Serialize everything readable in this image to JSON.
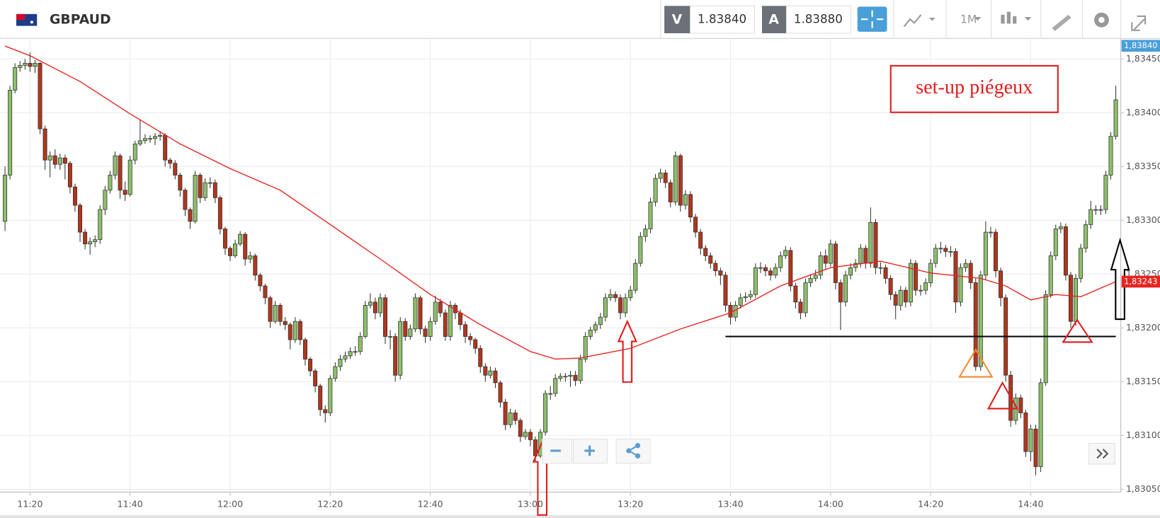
{
  "toolbar": {
    "symbol": "GBPAUD",
    "bid_tag": "V",
    "bid": "1.83840",
    "ask_tag": "A",
    "ask": "1.83880",
    "timeframe": "1M"
  },
  "chart_data": {
    "type": "candlestick",
    "x": [
      "11:15",
      "11:16",
      "11:17",
      "11:18",
      "11:19",
      "11:20",
      "11:21",
      "11:22",
      "11:23",
      "11:24",
      "11:25",
      "11:26",
      "11:27",
      "11:28",
      "11:29",
      "11:30",
      "11:31",
      "11:32",
      "11:33",
      "11:34",
      "11:35",
      "11:36",
      "11:37",
      "11:38",
      "11:39",
      "11:40",
      "11:41",
      "11:42",
      "11:43",
      "11:44",
      "11:45",
      "11:46",
      "11:47",
      "11:48",
      "11:49",
      "11:50",
      "11:51",
      "11:52",
      "11:53",
      "11:54",
      "11:55",
      "11:56",
      "11:57",
      "11:58",
      "11:59",
      "12:00",
      "12:01",
      "12:02",
      "12:03",
      "12:04",
      "12:05",
      "12:06",
      "12:07",
      "12:08",
      "12:09",
      "12:10",
      "12:11",
      "12:12",
      "12:13",
      "12:14",
      "12:15",
      "12:16",
      "12:17",
      "12:18",
      "12:19",
      "12:20",
      "12:21",
      "12:22",
      "12:23",
      "12:24",
      "12:25",
      "12:26",
      "12:27",
      "12:28",
      "12:29",
      "12:30",
      "12:31",
      "12:32",
      "12:33",
      "12:34",
      "12:35",
      "12:36",
      "12:37",
      "12:38",
      "12:39",
      "12:40",
      "12:41",
      "12:42",
      "12:43",
      "12:44",
      "12:45",
      "12:46",
      "12:47",
      "12:48",
      "12:49",
      "12:50",
      "12:51",
      "12:52",
      "12:53",
      "12:54",
      "12:55",
      "12:56",
      "12:57",
      "12:58",
      "12:59",
      "13:00",
      "13:01",
      "13:02",
      "13:03",
      "13:04",
      "13:05",
      "13:06",
      "13:07",
      "13:08",
      "13:09",
      "13:10",
      "13:11",
      "13:12",
      "13:13",
      "13:14",
      "13:15",
      "13:16",
      "13:17",
      "13:18",
      "13:19",
      "13:20",
      "13:21",
      "13:22",
      "13:23",
      "13:24",
      "13:25",
      "13:26",
      "13:27",
      "13:28",
      "13:29",
      "13:30",
      "13:31",
      "13:32",
      "13:33",
      "13:34",
      "13:35",
      "13:36",
      "13:37",
      "13:38",
      "13:39",
      "13:40",
      "13:41",
      "13:42",
      "13:43",
      "13:44",
      "13:45",
      "13:46",
      "13:47",
      "13:48",
      "13:49",
      "13:50",
      "13:51",
      "13:52",
      "13:53",
      "13:54",
      "13:55",
      "13:56",
      "13:57",
      "13:58",
      "13:59",
      "14:00",
      "14:01",
      "14:02",
      "14:03",
      "14:04",
      "14:05",
      "14:06",
      "14:07",
      "14:08",
      "14:09",
      "14:10",
      "14:11",
      "14:12",
      "14:13",
      "14:14",
      "14:15",
      "14:16",
      "14:17",
      "14:18",
      "14:19",
      "14:20",
      "14:21",
      "14:22",
      "14:23",
      "14:24",
      "14:25",
      "14:26",
      "14:27",
      "14:28",
      "14:29",
      "14:30",
      "14:31",
      "14:32",
      "14:33",
      "14:34",
      "14:35",
      "14:36",
      "14:37",
      "14:38",
      "14:39",
      "14:40",
      "14:41",
      "14:42",
      "14:43",
      "14:44",
      "14:45",
      "14:46",
      "14:47",
      "14:48",
      "14:49",
      "14:50",
      "14:51",
      "14:52",
      "14:53",
      "14:54",
      "14:55",
      "14:56",
      "14:57"
    ],
    "open": [
      1.83299,
      1.83342,
      1.83421,
      1.83442,
      1.83444,
      1.83446,
      1.83443,
      1.83446,
      1.83385,
      1.83356,
      1.8336,
      1.83352,
      1.83358,
      1.83353,
      1.83331,
      1.83314,
      1.83289,
      1.83278,
      1.8328,
      1.83282,
      1.8331,
      1.83328,
      1.83342,
      1.8336,
      1.83328,
      1.83324,
      1.83356,
      1.83371,
      1.83374,
      1.83376,
      1.83376,
      1.83378,
      1.83379,
      1.83356,
      1.83353,
      1.83342,
      1.83328,
      1.8331,
      1.83299,
      1.83342,
      1.83321,
      1.83335,
      1.83335,
      1.83321,
      1.83292,
      1.83274,
      1.83267,
      1.83278,
      1.83287,
      1.83264,
      1.83267,
      1.83249,
      1.83239,
      1.83228,
      1.83206,
      1.83221,
      1.83206,
      1.83203,
      1.83189,
      1.83206,
      1.83189,
      1.83171,
      1.8316,
      1.83146,
      1.83124,
      1.83121,
      1.83153,
      1.83164,
      1.83171,
      1.83174,
      1.83178,
      1.83178,
      1.83192,
      1.83221,
      1.83224,
      1.83214,
      1.83228,
      1.83192,
      1.83192,
      1.83156,
      1.83206,
      1.83192,
      1.83199,
      1.83228,
      1.83199,
      1.83192,
      1.83206,
      1.83224,
      1.83214,
      1.83192,
      1.83221,
      1.83214,
      1.83203,
      1.83192,
      1.83189,
      1.83181,
      1.83164,
      1.83156,
      1.8316,
      1.83149,
      1.83131,
      1.8311,
      1.83121,
      1.83114,
      1.83099,
      1.83103,
      1.83096,
      1.83081,
      1.83103,
      1.83139,
      1.83139,
      1.83153,
      1.83155,
      1.83155,
      1.83156,
      1.83151,
      1.83171,
      1.83192,
      1.83198,
      1.83203,
      1.8321,
      1.83228,
      1.83231,
      1.83228,
      1.83214,
      1.83228,
      1.83235,
      1.8326,
      1.83285,
      1.83292,
      1.83317,
      1.83339,
      1.83344,
      1.83335,
      1.83317,
      1.8336,
      1.83314,
      1.83324,
      1.83303,
      1.83289,
      1.83274,
      1.83267,
      1.8326,
      1.83253,
      1.83249,
      1.83221,
      1.8321,
      1.83221,
      1.83228,
      1.83229,
      1.83231,
      1.83256,
      1.83256,
      1.83253,
      1.83249,
      1.83256,
      1.83267,
      1.83272,
      1.83239,
      1.83224,
      1.83214,
      1.83242,
      1.83246,
      1.83249,
      1.83267,
      1.8326,
      1.83278,
      1.83242,
      1.83224,
      1.83249,
      1.83256,
      1.8326,
      1.83274,
      1.8326,
      1.83298,
      1.83256,
      1.83256,
      1.83246,
      1.83231,
      1.83221,
      1.83235,
      1.83224,
      1.8326,
      1.83235,
      1.83235,
      1.83242,
      1.8326,
      1.83274,
      1.83274,
      1.83271,
      1.83271,
      1.83224,
      1.83256,
      1.8326,
      1.83242,
      1.83164,
      1.83249,
      1.83289,
      1.83289,
      1.83253,
      1.83228,
      1.83156,
      1.83114,
      1.83135,
      1.83121,
      1.83085,
      1.83106,
      1.83071,
      1.83149,
      1.83231,
      1.83267,
      1.83292,
      1.83294,
      1.83249,
      1.83206,
      1.83246,
      1.83274,
      1.83296,
      1.8331,
      1.8331,
      1.8331,
      1.83342,
      1.83378
    ],
    "high": [
      1.8335,
      1.83425,
      1.83446,
      1.83448,
      1.8345,
      1.83456,
      1.83449,
      1.83447,
      1.83388,
      1.83364,
      1.83366,
      1.83362,
      1.83361,
      1.83355,
      1.83334,
      1.83316,
      1.83292,
      1.83284,
      1.83286,
      1.83314,
      1.83332,
      1.83346,
      1.83364,
      1.83362,
      1.83336,
      1.8336,
      1.83374,
      1.83394,
      1.8338,
      1.83379,
      1.83381,
      1.83383,
      1.83381,
      1.83358,
      1.83356,
      1.83344,
      1.8333,
      1.83312,
      1.83346,
      1.83344,
      1.83339,
      1.8334,
      1.83338,
      1.83323,
      1.83294,
      1.83276,
      1.83282,
      1.8329,
      1.83289,
      1.83271,
      1.83269,
      1.83251,
      1.83241,
      1.8323,
      1.83225,
      1.83223,
      1.8321,
      1.83205,
      1.8321,
      1.83208,
      1.83191,
      1.83173,
      1.83162,
      1.83148,
      1.83128,
      1.83156,
      1.83168,
      1.83175,
      1.83178,
      1.83182,
      1.83183,
      1.83196,
      1.83225,
      1.83232,
      1.83228,
      1.83232,
      1.83231,
      1.83198,
      1.83195,
      1.8321,
      1.83209,
      1.83203,
      1.83232,
      1.8323,
      1.83202,
      1.8321,
      1.8323,
      1.83227,
      1.83217,
      1.83225,
      1.83223,
      1.83217,
      1.83206,
      1.83195,
      1.83191,
      1.83184,
      1.83167,
      1.83164,
      1.83163,
      1.83151,
      1.83134,
      1.83125,
      1.83124,
      1.83116,
      1.83106,
      1.83106,
      1.83099,
      1.83106,
      1.83142,
      1.83146,
      1.83157,
      1.83158,
      1.83158,
      1.8316,
      1.8316,
      1.83175,
      1.83196,
      1.83201,
      1.83206,
      1.83214,
      1.83232,
      1.83236,
      1.83234,
      1.83231,
      1.83232,
      1.83239,
      1.83264,
      1.83289,
      1.83296,
      1.83321,
      1.83343,
      1.83348,
      1.83347,
      1.83338,
      1.83364,
      1.83362,
      1.83328,
      1.83327,
      1.83306,
      1.83292,
      1.83277,
      1.8327,
      1.83263,
      1.83256,
      1.83252,
      1.83224,
      1.83225,
      1.83232,
      1.83233,
      1.83235,
      1.8326,
      1.83261,
      1.83259,
      1.83256,
      1.8326,
      1.83271,
      1.83276,
      1.83275,
      1.83242,
      1.83227,
      1.83246,
      1.8325,
      1.83254,
      1.83271,
      1.83273,
      1.83282,
      1.83281,
      1.83245,
      1.83253,
      1.8326,
      1.83264,
      1.83278,
      1.83277,
      1.83312,
      1.83301,
      1.83261,
      1.83259,
      1.83249,
      1.83234,
      1.83239,
      1.83238,
      1.83264,
      1.83263,
      1.8324,
      1.83246,
      1.83264,
      1.83278,
      1.8328,
      1.83277,
      1.83276,
      1.83274,
      1.8326,
      1.83264,
      1.83263,
      1.83246,
      1.83253,
      1.83299,
      1.83294,
      1.83292,
      1.83256,
      1.83231,
      1.8316,
      1.83139,
      1.83138,
      1.83124,
      1.8311,
      1.8311,
      1.83153,
      1.83235,
      1.83271,
      1.83296,
      1.83298,
      1.83297,
      1.83252,
      1.8325,
      1.83278,
      1.833,
      1.83318,
      1.83314,
      1.83314,
      1.83346,
      1.83382,
      1.83425
    ],
    "low": [
      1.8329,
      1.83338,
      1.83418,
      1.83438,
      1.8344,
      1.83438,
      1.83437,
      1.8338,
      1.83347,
      1.8334,
      1.83348,
      1.83347,
      1.83338,
      1.83325,
      1.83308,
      1.8328,
      1.83273,
      1.83268,
      1.83275,
      1.83278,
      1.83305,
      1.83325,
      1.83338,
      1.8332,
      1.83318,
      1.83322,
      1.83352,
      1.83369,
      1.83371,
      1.83372,
      1.8337,
      1.83374,
      1.8335,
      1.83348,
      1.83338,
      1.83322,
      1.83304,
      1.83292,
      1.83297,
      1.83316,
      1.83318,
      1.8333,
      1.83316,
      1.83287,
      1.83268,
      1.83262,
      1.83265,
      1.83276,
      1.83258,
      1.8326,
      1.83244,
      1.83234,
      1.83222,
      1.832,
      1.83204,
      1.83202,
      1.83198,
      1.8318,
      1.83186,
      1.83184,
      1.83165,
      1.83155,
      1.8314,
      1.83118,
      1.83112,
      1.83118,
      1.8315,
      1.8316,
      1.83168,
      1.83171,
      1.83174,
      1.83175,
      1.8319,
      1.83218,
      1.83208,
      1.8321,
      1.83185,
      1.8318,
      1.8315,
      1.83152,
      1.83188,
      1.83189,
      1.83196,
      1.83194,
      1.83186,
      1.83188,
      1.83203,
      1.8321,
      1.83188,
      1.83188,
      1.83208,
      1.83198,
      1.83186,
      1.83184,
      1.83176,
      1.83158,
      1.8315,
      1.83153,
      1.83144,
      1.83126,
      1.83105,
      1.83107,
      1.8311,
      1.83094,
      1.83096,
      1.8309,
      1.83076,
      1.83079,
      1.831,
      1.83133,
      1.83136,
      1.8315,
      1.8315,
      1.83145,
      1.83146,
      1.83148,
      1.83168,
      1.83189,
      1.83195,
      1.83199,
      1.83206,
      1.83225,
      1.83224,
      1.83208,
      1.8321,
      1.83225,
      1.83232,
      1.83257,
      1.8328,
      1.83288,
      1.83313,
      1.83335,
      1.8333,
      1.83312,
      1.83314,
      1.83308,
      1.8331,
      1.83298,
      1.83284,
      1.83268,
      1.83262,
      1.83255,
      1.83248,
      1.8324,
      1.83215,
      1.83203,
      1.83206,
      1.83218,
      1.83224,
      1.83226,
      1.83228,
      1.83251,
      1.83248,
      1.83244,
      1.83246,
      1.83252,
      1.83264,
      1.83234,
      1.83218,
      1.83208,
      1.8321,
      1.83238,
      1.83243,
      1.83245,
      1.83255,
      1.83257,
      1.83236,
      1.83198,
      1.8322,
      1.83245,
      1.83252,
      1.83256,
      1.83255,
      1.83256,
      1.8325,
      1.8325,
      1.83241,
      1.83226,
      1.83208,
      1.83216,
      1.83219,
      1.8322,
      1.8323,
      1.8323,
      1.83231,
      1.83238,
      1.83256,
      1.83269,
      1.83266,
      1.83266,
      1.83214,
      1.8322,
      1.83252,
      1.83236,
      1.8316,
      1.8316,
      1.83245,
      1.83284,
      1.83247,
      1.8322,
      1.8315,
      1.83108,
      1.8311,
      1.83116,
      1.8308,
      1.83076,
      1.83063,
      1.83066,
      1.83146,
      1.83228,
      1.83263,
      1.83288,
      1.83244,
      1.832,
      1.83202,
      1.83242,
      1.8327,
      1.83292,
      1.83305,
      1.83305,
      1.83306,
      1.83338,
      1.83375
    ],
    "close": [
      1.83342,
      1.83421,
      1.83442,
      1.83444,
      1.83446,
      1.83443,
      1.83446,
      1.83385,
      1.83356,
      1.8336,
      1.83352,
      1.83358,
      1.83353,
      1.83331,
      1.83314,
      1.83289,
      1.83278,
      1.8328,
      1.83282,
      1.8331,
      1.83328,
      1.83342,
      1.8336,
      1.83328,
      1.83324,
      1.83356,
      1.83371,
      1.83374,
      1.83376,
      1.83376,
      1.83378,
      1.83379,
      1.83356,
      1.83353,
      1.83342,
      1.83328,
      1.8331,
      1.83299,
      1.83342,
      1.83321,
      1.83335,
      1.83335,
      1.83321,
      1.83292,
      1.83274,
      1.83267,
      1.83278,
      1.83287,
      1.83264,
      1.83267,
      1.83249,
      1.83239,
      1.83228,
      1.83206,
      1.83221,
      1.83206,
      1.83203,
      1.83189,
      1.83206,
      1.83189,
      1.83171,
      1.8316,
      1.83146,
      1.83124,
      1.83121,
      1.83153,
      1.83164,
      1.83171,
      1.83174,
      1.83178,
      1.83178,
      1.83192,
      1.83221,
      1.83224,
      1.83214,
      1.83228,
      1.83192,
      1.83192,
      1.83156,
      1.83206,
      1.83192,
      1.83199,
      1.83228,
      1.83199,
      1.83192,
      1.83206,
      1.83224,
      1.83214,
      1.83192,
      1.83221,
      1.83214,
      1.83203,
      1.83192,
      1.83189,
      1.83181,
      1.83164,
      1.83156,
      1.8316,
      1.83149,
      1.83131,
      1.8311,
      1.83121,
      1.83114,
      1.83099,
      1.83103,
      1.83096,
      1.83081,
      1.83103,
      1.83139,
      1.83139,
      1.83153,
      1.83155,
      1.83155,
      1.83156,
      1.83151,
      1.83171,
      1.83192,
      1.83198,
      1.83203,
      1.8321,
      1.83228,
      1.83231,
      1.83228,
      1.83214,
      1.83228,
      1.83235,
      1.8326,
      1.83285,
      1.83292,
      1.83317,
      1.83339,
      1.83344,
      1.83335,
      1.83317,
      1.8336,
      1.83314,
      1.83324,
      1.83303,
      1.83289,
      1.83274,
      1.83267,
      1.8326,
      1.83253,
      1.83249,
      1.83221,
      1.8321,
      1.83221,
      1.83228,
      1.83229,
      1.83231,
      1.83256,
      1.83256,
      1.83253,
      1.83249,
      1.83256,
      1.83267,
      1.83272,
      1.83239,
      1.83224,
      1.83214,
      1.83242,
      1.83246,
      1.83249,
      1.83267,
      1.8326,
      1.83278,
      1.83242,
      1.83224,
      1.83249,
      1.83256,
      1.8326,
      1.83274,
      1.8326,
      1.83298,
      1.83256,
      1.83256,
      1.83246,
      1.83231,
      1.83221,
      1.83235,
      1.83224,
      1.8326,
      1.83235,
      1.83235,
      1.83242,
      1.8326,
      1.83274,
      1.83274,
      1.83271,
      1.83271,
      1.83224,
      1.83256,
      1.8326,
      1.83242,
      1.83164,
      1.83249,
      1.83289,
      1.83289,
      1.83253,
      1.83228,
      1.83156,
      1.83114,
      1.83135,
      1.83121,
      1.83085,
      1.83106,
      1.83071,
      1.83149,
      1.83231,
      1.83267,
      1.83292,
      1.83294,
      1.83249,
      1.83206,
      1.83246,
      1.83274,
      1.83296,
      1.8331,
      1.8331,
      1.8331,
      1.83342,
      1.83378,
      1.83412
    ],
    "up_color": "#8cbf6a",
    "down_color": "#b0371d",
    "xlim": [
      "11:14",
      "14:58"
    ],
    "xticks": [
      "11:20",
      "11:40",
      "12:00",
      "12:20",
      "12:40",
      "13:00",
      "13:20",
      "13:40",
      "14:00",
      "14:20",
      "14:40"
    ],
    "ylim": [
      1.83048,
      1.83467
    ],
    "yticks": [
      {
        "value": 1.8305,
        "label": "1,83050"
      },
      {
        "value": 1.831,
        "label": "1,83100"
      },
      {
        "value": 1.8315,
        "label": "1,83150"
      },
      {
        "value": 1.832,
        "label": "1,83200"
      },
      {
        "value": 1.8325,
        "label": "1,83250"
      },
      {
        "value": 1.833,
        "label": "1,83300"
      },
      {
        "value": 1.8335,
        "label": "1,83350"
      },
      {
        "value": 1.834,
        "label": "1,83400"
      },
      {
        "value": 1.8345,
        "label": "1,83450"
      }
    ],
    "grid": true,
    "moving_average": {
      "color": "#e8231f",
      "x": [
        "11:15",
        "11:20",
        "11:30",
        "11:40",
        "11:50",
        "12:00",
        "12:10",
        "12:20",
        "12:30",
        "12:40",
        "12:50",
        "13:00",
        "13:05",
        "13:10",
        "13:20",
        "13:30",
        "13:40",
        "13:50",
        "14:00",
        "14:10",
        "14:20",
        "14:30",
        "14:35",
        "14:40",
        "14:45",
        "14:50",
        "14:57"
      ],
      "values": [
        1.83462,
        1.83453,
        1.83429,
        1.83399,
        1.83371,
        1.83348,
        1.83328,
        1.83296,
        1.83264,
        1.83231,
        1.83203,
        1.83178,
        1.83171,
        1.83172,
        1.83181,
        1.83199,
        1.83214,
        1.83239,
        1.83256,
        1.83262,
        1.83251,
        1.83246,
        1.83239,
        1.83226,
        1.83231,
        1.83229,
        1.83243
      ]
    },
    "level_line": {
      "color": "#000000",
      "value": 1.83192,
      "x": [
        "13:39",
        "14:57"
      ]
    },
    "price_badges": [
      {
        "label": "1,83840",
        "color": "#4a9fd8"
      },
      {
        "value": 1.83243,
        "label": "1,83243",
        "color": "#e8231f"
      }
    ],
    "annotation": "set-up piégeux"
  }
}
